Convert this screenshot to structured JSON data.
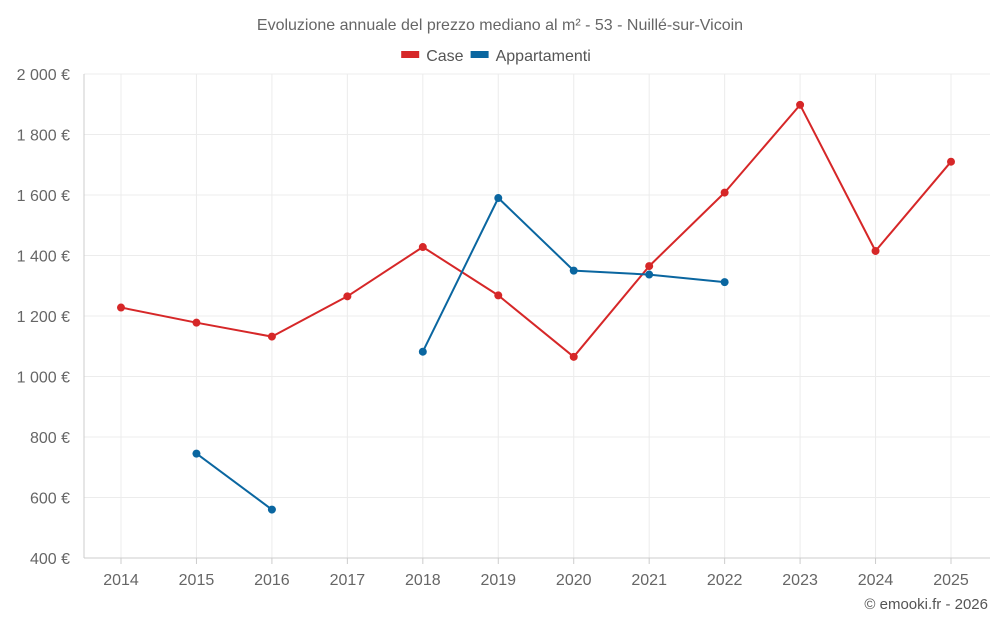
{
  "chart_data": {
    "type": "line",
    "title": "Evoluzione annuale del prezzo mediano al m² - 53 - Nuillé-sur-Vicoin",
    "categories": [
      "2014",
      "2015",
      "2016",
      "2017",
      "2018",
      "2019",
      "2020",
      "2021",
      "2022",
      "2023",
      "2024",
      "2025"
    ],
    "ylim": [
      400,
      2000
    ],
    "yticks": [
      400,
      600,
      800,
      1000,
      1200,
      1400,
      1600,
      1800,
      2000
    ],
    "ytick_labels": [
      "400 €",
      "600 €",
      "800 €",
      "1 000 €",
      "1 200 €",
      "1 400 €",
      "1 600 €",
      "1 800 €",
      "2 000 €"
    ],
    "xlabel": "",
    "ylabel": "",
    "grid": true,
    "legend_position": "top-center",
    "series": [
      {
        "name": "Case",
        "color": "#d62728",
        "values": [
          1228,
          1178,
          1132,
          1265,
          1428,
          1268,
          1065,
          1365,
          1608,
          1898,
          1415,
          1710
        ]
      },
      {
        "name": "Appartamenti",
        "color": "#0a66a0",
        "values": [
          null,
          745,
          560,
          null,
          1082,
          1590,
          1350,
          1337,
          1312,
          null,
          null,
          null
        ]
      }
    ]
  },
  "credit": "© emooki.fr - 2026"
}
